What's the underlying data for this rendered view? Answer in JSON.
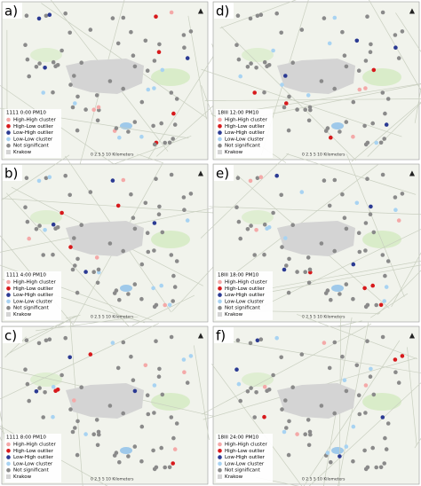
{
  "panels": [
    {
      "label": "a)",
      "title": "1111 0:00 PM10"
    },
    {
      "label": "d)",
      "title": "18III 12:00 PM10"
    },
    {
      "label": "b)",
      "title": "1111 4:00 PM10"
    },
    {
      "label": "e)",
      "title": "18III 18:00 PM10"
    },
    {
      "label": "c)",
      "title": "1111 8:00 PM10"
    },
    {
      "label": "f)",
      "title": "18III 24:00 PM10"
    }
  ],
  "legend": [
    {
      "name": "High-High cluster",
      "color": "#f4a9a8"
    },
    {
      "name": "High-Low outlier",
      "color": "#d7191c"
    },
    {
      "name": "Low-High outlier",
      "color": "#2b3a93"
    },
    {
      "name": "Low-Low cluster",
      "color": "#a8d3f2"
    },
    {
      "name": "Not significant",
      "color": "#8a8a8a"
    },
    {
      "name": "Krakow",
      "color": "#d4d4d4"
    }
  ],
  "scale": "0 2.5 5 10 Kilometers"
}
